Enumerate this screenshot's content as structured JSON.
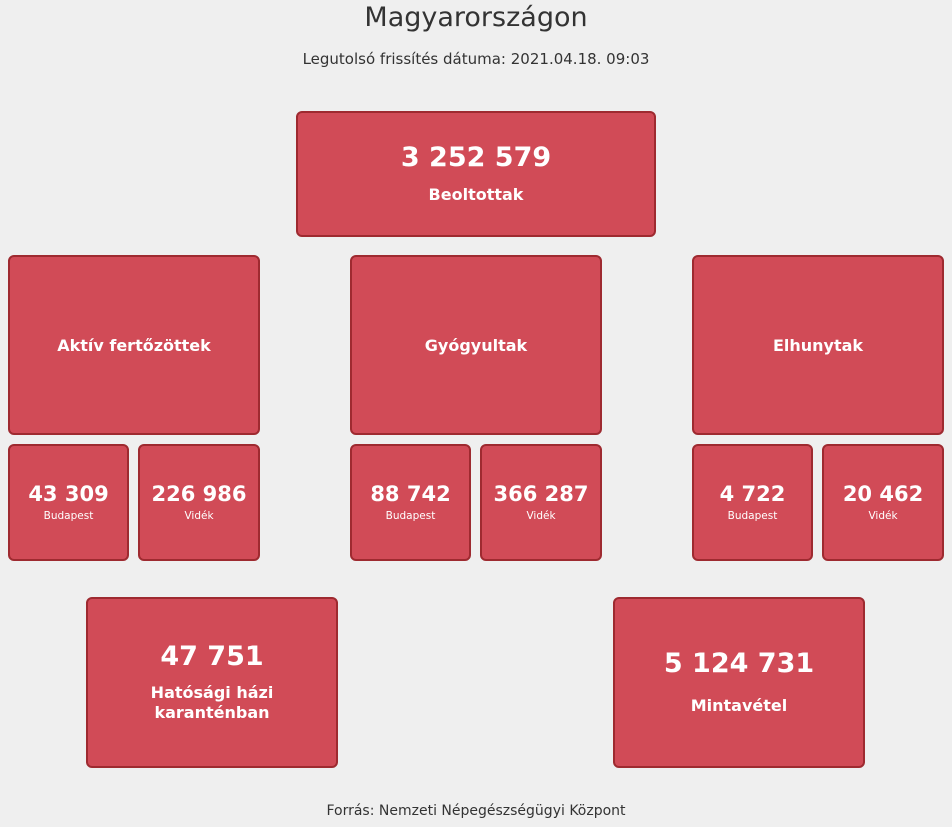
{
  "header": {
    "title": "Magyarországon",
    "updated_label": "Legutolsó frissítés dátuma:",
    "updated_value": "2021.04.18. 09:03"
  },
  "vaccinated": {
    "value": "3 252 579",
    "label": "Beoltottak"
  },
  "groups": [
    {
      "label": "Aktív fertőzöttek",
      "budapest": {
        "value": "43 309",
        "label": "Budapest"
      },
      "videk": {
        "value": "226 986",
        "label": "Vidék"
      }
    },
    {
      "label": "Gyógyultak",
      "budapest": {
        "value": "88 742",
        "label": "Budapest"
      },
      "videk": {
        "value": "366 287",
        "label": "Vidék"
      }
    },
    {
      "label": "Elhunytak",
      "budapest": {
        "value": "4 722",
        "label": "Budapest"
      },
      "videk": {
        "value": "20 462",
        "label": "Vidék"
      }
    }
  ],
  "quarantine": {
    "value": "47 751",
    "label_line1": "Hatósági házi",
    "label_line2": "karanténban"
  },
  "sampling": {
    "value": "5 124 731",
    "label": "Mintavétel"
  },
  "footer": {
    "source": "Forrás: Nemzeti Népegészségügyi Központ"
  },
  "colors": {
    "card_bg": "#d14b57",
    "card_border": "#9e2a30",
    "page_bg": "#efefef"
  }
}
